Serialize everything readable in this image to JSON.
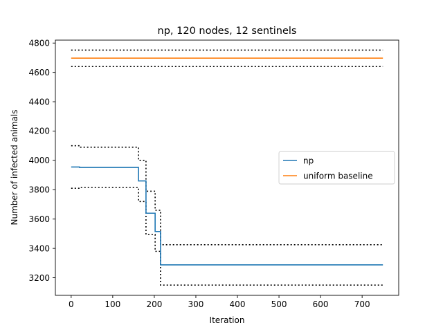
{
  "chart_data": {
    "type": "line",
    "title": "np, 120 nodes, 12 sentinels",
    "xlabel": "Iteration",
    "ylabel": "Number of infected animals",
    "xlim": [
      -38,
      788
    ],
    "ylim": [
      3080,
      4820
    ],
    "xticks": [
      "0",
      "100",
      "200",
      "300",
      "400",
      "500",
      "600",
      "700"
    ],
    "xtick_values": [
      0,
      100,
      200,
      300,
      400,
      500,
      600,
      700
    ],
    "yticks": [
      "3200",
      "3400",
      "3600",
      "3800",
      "4000",
      "4200",
      "4400",
      "4600",
      "4800"
    ],
    "ytick_values": [
      3200,
      3400,
      3600,
      3800,
      4000,
      4200,
      4400,
      4600,
      4800
    ],
    "grid": false,
    "legend_position": "right",
    "series": [
      {
        "name": "np",
        "color": "#1f77b4",
        "style": "solid",
        "step": true,
        "points": [
          [
            0,
            3955
          ],
          [
            20,
            3955
          ],
          [
            20,
            3952
          ],
          [
            162,
            3952
          ],
          [
            162,
            3860
          ],
          [
            180,
            3860
          ],
          [
            180,
            3640
          ],
          [
            202,
            3640
          ],
          [
            202,
            3515
          ],
          [
            215,
            3515
          ],
          [
            215,
            3288
          ],
          [
            750,
            3288
          ]
        ]
      },
      {
        "name": "uniform baseline",
        "color": "#ff7f0e",
        "style": "solid",
        "step": false,
        "points": [
          [
            0,
            4697
          ],
          [
            750,
            4697
          ]
        ]
      }
    ],
    "bounds": [
      {
        "color": "#000000",
        "style": "dotted",
        "points": [
          [
            0,
            4752
          ],
          [
            750,
            4752
          ]
        ]
      },
      {
        "color": "#000000",
        "style": "dotted",
        "points": [
          [
            0,
            4640
          ],
          [
            750,
            4640
          ]
        ]
      },
      {
        "color": "#000000",
        "style": "dotted",
        "points": [
          [
            0,
            4100
          ],
          [
            20,
            4100
          ],
          [
            20,
            4090
          ],
          [
            162,
            4090
          ],
          [
            162,
            4000
          ],
          [
            180,
            4000
          ],
          [
            180,
            3790
          ],
          [
            202,
            3790
          ],
          [
            202,
            3660
          ],
          [
            215,
            3660
          ],
          [
            215,
            3425
          ],
          [
            750,
            3425
          ]
        ]
      },
      {
        "color": "#000000",
        "style": "dotted",
        "points": [
          [
            0,
            3810
          ],
          [
            20,
            3810
          ],
          [
            20,
            3815
          ],
          [
            162,
            3815
          ],
          [
            162,
            3720
          ],
          [
            180,
            3720
          ],
          [
            180,
            3495
          ],
          [
            202,
            3495
          ],
          [
            202,
            3380
          ],
          [
            215,
            3380
          ],
          [
            215,
            3150
          ],
          [
            750,
            3150
          ]
        ]
      }
    ]
  }
}
